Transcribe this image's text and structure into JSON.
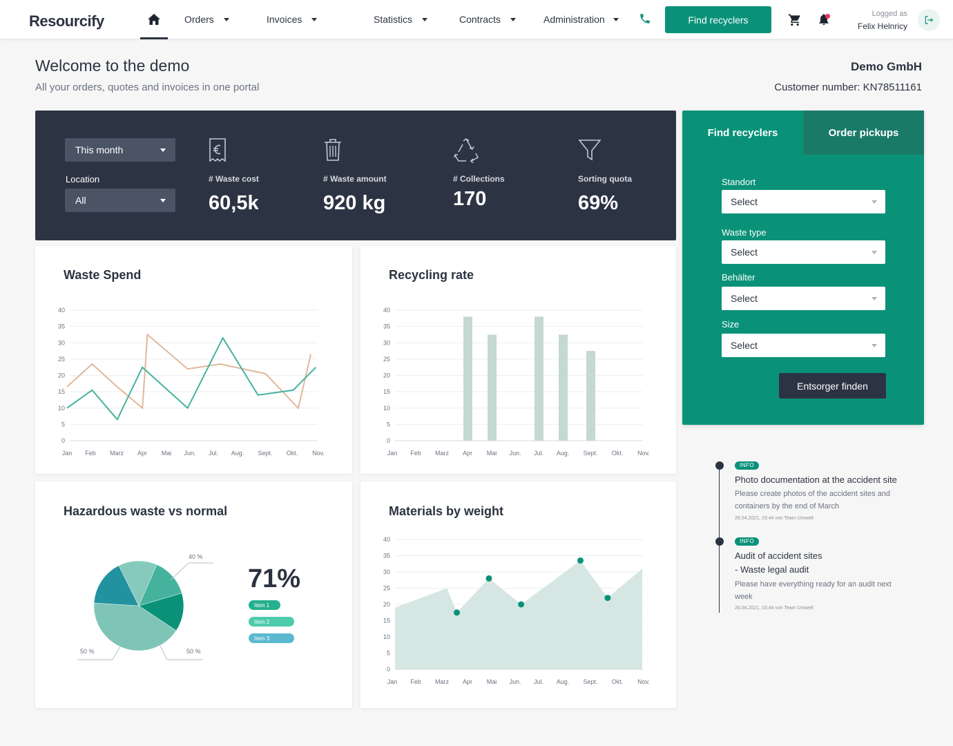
{
  "nav": {
    "logo": "Resourcify",
    "items": [
      {
        "label": "Orders"
      },
      {
        "label": "Invoices"
      },
      {
        "label": "Statistics"
      },
      {
        "label": "Contracts"
      },
      {
        "label": "Administration"
      }
    ],
    "find_button": "Find recyclers",
    "logged_as_label": "Logged as",
    "user_name": "Felix Helnricy",
    "icons": [
      "home-icon",
      "phone-icon",
      "cart-icon",
      "bell-icon",
      "logout-icon"
    ],
    "accent_color": "#0a9279"
  },
  "header": {
    "title": "Welcome to the demo",
    "subtitle": "All your orders, quotes and invoices in one portal",
    "company": "Demo GmbH",
    "customer_number": "Customer number: KN78511161"
  },
  "stats": {
    "period": "This month",
    "location_label": "Location",
    "location_value": "All",
    "items": [
      {
        "label": "# Waste cost",
        "value": "60,5k",
        "icon": "receipt-euro-icon"
      },
      {
        "label": "# Waste amount",
        "value": "920 kg",
        "icon": "trash-icon"
      },
      {
        "label": "# Collections",
        "value": "170",
        "icon": "recycle-icon"
      },
      {
        "label": "Sorting quota",
        "value": "69%",
        "icon": "funnel-icon"
      }
    ]
  },
  "cards": {
    "waste_spend": {
      "title": "Waste Spend"
    },
    "recycling_rate": {
      "title": "Recycling rate"
    },
    "hazardous": {
      "title": "Hazardous waste vs normal",
      "big_value": "71%"
    },
    "materials": {
      "title": "Materials by weight"
    }
  },
  "chart_data": [
    {
      "type": "line",
      "title": "Waste Spend",
      "categories": [
        "Jan",
        "Feb",
        "Marz",
        "Apr",
        "Mai",
        "Jun.",
        "Jul.",
        "Aug.",
        "Sept.",
        "Okt.",
        "Nov."
      ],
      "ylim": [
        0,
        40
      ],
      "yticks": [
        0,
        5,
        10,
        15,
        20,
        25,
        30,
        35,
        40
      ],
      "grid": true,
      "series": [
        {
          "color": "#e0b89c",
          "x": [
            0,
            1,
            2,
            3,
            3.2,
            4.8,
            6.1,
            7.9,
            9.2,
            9.7
          ],
          "values": [
            16.5,
            23.5,
            16.5,
            10,
            32.5,
            22,
            23.5,
            20.5,
            10,
            26.5
          ]
        },
        {
          "color": "#45b29d",
          "x": [
            0,
            1,
            2,
            3,
            4.8,
            6.2,
            7.6,
            9,
            9.9
          ],
          "values": [
            10,
            15.5,
            6.5,
            22.5,
            10,
            31.5,
            14,
            15.5,
            22.5
          ]
        }
      ]
    },
    {
      "type": "bar",
      "title": "Recycling rate",
      "categories": [
        "Jan",
        "Feb",
        "Marz",
        "Apr",
        "Mai",
        "Jun.",
        "Jul.",
        "Aug.",
        "Sept.",
        "Okt.",
        "Nov."
      ],
      "values": [
        0,
        0,
        0,
        38,
        32.5,
        0,
        38,
        32.5,
        27.5,
        0,
        0
      ],
      "ylim": [
        0,
        40
      ],
      "yticks": [
        0,
        5,
        10,
        15,
        20,
        25,
        30,
        35,
        40
      ],
      "grid": true,
      "color": "#c5d9d3"
    },
    {
      "type": "pie",
      "title": "Hazardous waste vs normal",
      "slices": [
        {
          "label": "Item 1",
          "value": 12.5,
          "color": "#45b29d"
        },
        {
          "label": "Item 2",
          "value": 12.5,
          "color": "#0a9279"
        },
        {
          "label": "Item 3",
          "value": 37.5,
          "color": "#7ec5b7"
        },
        {
          "label": "",
          "value": 15,
          "color": "#2392a0"
        },
        {
          "label": "",
          "value": 12.5,
          "color": "#86c9bd"
        }
      ],
      "annotations": [
        "40 %",
        "50 %",
        "50 %"
      ],
      "legend": [
        {
          "label": "Item 1",
          "color": "#26b08f"
        },
        {
          "label": "Item 2",
          "color": "#4ccbad"
        },
        {
          "label": "Item 3",
          "color": "#5ab8cf"
        }
      ]
    },
    {
      "type": "area",
      "title": "Materials by weight",
      "categories": [
        "Jan",
        "Feb",
        "Marz",
        "Apr",
        "Mai",
        "Jun.",
        "Jul.",
        "Aug.",
        "Sept.",
        "Okt.",
        "Nov."
      ],
      "ylim": [
        0,
        40
      ],
      "yticks": [
        0,
        5,
        10,
        15,
        20,
        25,
        30,
        35,
        40
      ],
      "grid": true,
      "x": [
        0,
        2.1,
        2.5,
        3.8,
        5.1,
        7.5,
        8.6,
        10
      ],
      "values": [
        19,
        25,
        17.5,
        28,
        20,
        33.5,
        22,
        31
      ],
      "marker_indices": [
        2,
        3,
        4,
        5,
        6
      ],
      "fill_color": "#d6e6e3",
      "marker_color": "#0a9279"
    }
  ],
  "panel": {
    "tabs": [
      "Find recyclers",
      "Order pickups"
    ],
    "fields": [
      {
        "label": "Standort",
        "value": "Select"
      },
      {
        "label": "Waste type",
        "value": "Select"
      },
      {
        "label": "Behälter",
        "value": "Select"
      },
      {
        "label": "Size",
        "value": "Select"
      }
    ],
    "submit": "Entsorger finden"
  },
  "timeline": [
    {
      "badge": "INFO",
      "title_lines": [
        "Photo documentation at the accident site"
      ],
      "text": "Please create photos of the accident sites and containers by the end of March",
      "meta": "26.04.2021, 15:44 von Team Umwelt"
    },
    {
      "badge": "INFO",
      "title_lines": [
        "Audit of accident sites",
        "- Waste legal audit"
      ],
      "text": "Please have everything ready for an audit next week",
      "meta": "26.04.2021, 15:44 von Team Umwelt"
    }
  ]
}
